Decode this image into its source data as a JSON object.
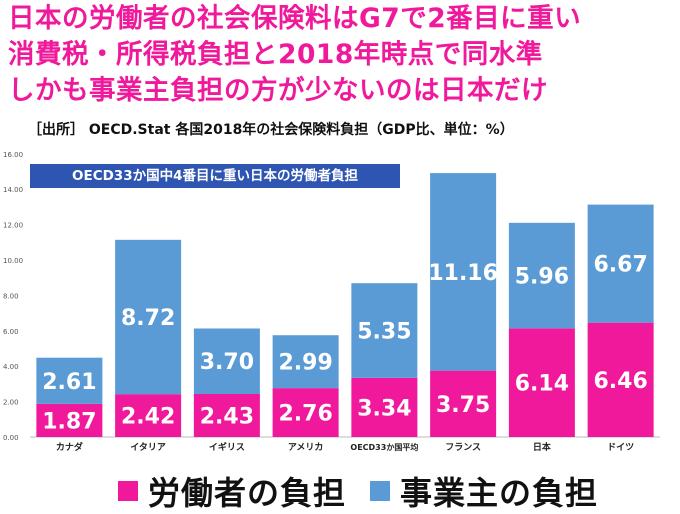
{
  "headlines": [
    "日本の労働者の社会保険料はG7で2番目に重い",
    "消費税・所得税負担と2018年時点で同水準",
    "しかも事業主負担の方が少ないのは日本だけ"
  ],
  "source_note": "［出所］ OECD.Stat 各国2018年の社会保険料負担（GDP比、単位：%）",
  "callout": "OECD33か国中4番目に重い日本の労働者負担",
  "colors": {
    "headline": "#f0189b",
    "worker": "#f0189b",
    "employer": "#5b9bd5",
    "callout_bg": "#2f55b2"
  },
  "chart_data": {
    "type": "bar",
    "stacked": true,
    "categories": [
      "カナダ",
      "イタリア",
      "イギリス",
      "アメリカ",
      "OECD33か国平均",
      "フランス",
      "日本",
      "ドイツ"
    ],
    "series": [
      {
        "name": "労働者の負担",
        "values": [
          1.87,
          2.42,
          2.43,
          2.76,
          3.34,
          3.75,
          6.14,
          6.46
        ]
      },
      {
        "name": "事業主の負担",
        "values": [
          2.61,
          8.72,
          3.7,
          2.99,
          5.35,
          11.16,
          5.96,
          6.67
        ]
      }
    ],
    "value_labels": [
      [
        "1.87",
        "2.42",
        "2.43",
        "2.76",
        "3.34",
        "3.75",
        "6.14",
        "6.46"
      ],
      [
        "2.61",
        "8.72",
        "3.70",
        "2.99",
        "5.35",
        "11.16",
        "5.96",
        "6.67"
      ]
    ],
    "ylim": [
      0,
      16
    ],
    "yticks": [
      "0.00",
      "2.00",
      "4.00",
      "6.00",
      "8.00",
      "10.00",
      "12.00",
      "14.00",
      "16.00"
    ],
    "grid": false,
    "legend_position": "bottom"
  }
}
